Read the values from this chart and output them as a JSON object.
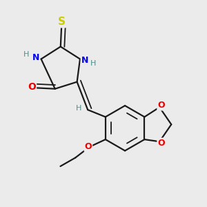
{
  "background_color": "#ebebeb",
  "bond_color": "#1a1a1a",
  "atom_colors": {
    "N": "#0000ee",
    "O": "#ee0000",
    "S": "#cccc00",
    "C": "#1a1a1a",
    "H": "#4a9090"
  }
}
